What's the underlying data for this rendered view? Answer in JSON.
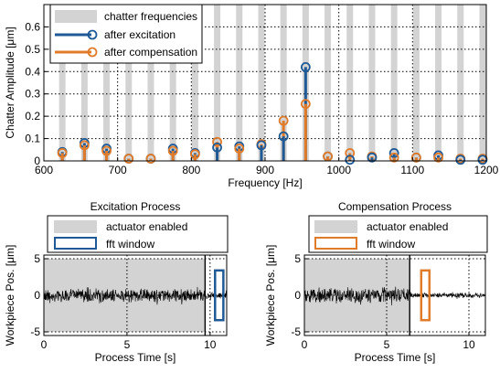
{
  "colors": {
    "chatter": "#d3d3d3",
    "excitation": "#1f5a96",
    "compensation": "#e07b2a",
    "noise": "#000000",
    "grid": "#000000"
  },
  "chart_data": [
    {
      "id": "spectrum",
      "type": "stem",
      "title": "",
      "xlabel": "Frequency [Hz]",
      "ylabel": "Chatter Amplitude [μm]",
      "xlim": [
        600,
        1200
      ],
      "ylim": [
        0,
        0.7
      ],
      "xticks": [
        600,
        700,
        800,
        900,
        1000,
        1100,
        1200
      ],
      "yticks": [
        0,
        0.1,
        0.2,
        0.3,
        0.4,
        0.5,
        0.6
      ],
      "xtick_labels": [
        "600",
        "700",
        "800",
        "900",
        "1000",
        "1100",
        "1200"
      ],
      "ytick_labels": [
        "0",
        "0.1",
        "0.2",
        "0.3",
        "0.4",
        "0.5",
        "0.6"
      ],
      "grid": true,
      "grid_style": "dotted",
      "legend_position": "top-left",
      "legend": [
        "chatter frequencies",
        "after excitation",
        "after compensation"
      ],
      "chatter_frequencies": [
        625,
        655,
        685,
        715,
        745,
        775,
        805,
        835,
        865,
        895,
        925,
        955,
        985,
        1015,
        1045,
        1075,
        1105,
        1135,
        1165,
        1195
      ],
      "series": [
        {
          "name": "after excitation",
          "x": [
            625,
            655,
            685,
            715,
            745,
            775,
            805,
            835,
            865,
            895,
            925,
            955,
            985,
            1015,
            1045,
            1075,
            1105,
            1135,
            1165,
            1195
          ],
          "values": [
            0.04,
            0.08,
            0.055,
            0.01,
            0.01,
            0.055,
            0.035,
            0.06,
            0.065,
            0.07,
            0.11,
            0.42,
            0.02,
            0.005,
            0.015,
            0.035,
            0.015,
            0.025,
            0.005,
            0.005
          ]
        },
        {
          "name": "after compensation",
          "x": [
            625,
            655,
            685,
            715,
            745,
            775,
            805,
            835,
            865,
            895,
            925,
            955,
            985,
            1015,
            1045,
            1075,
            1105,
            1135,
            1165,
            1195
          ],
          "values": [
            0.035,
            0.07,
            0.045,
            0.01,
            0.01,
            0.045,
            0.03,
            0.085,
            0.055,
            0.075,
            0.18,
            0.255,
            0.02,
            0.035,
            0.02,
            0.015,
            0.015,
            0.015,
            0.01,
            0.01
          ]
        }
      ]
    },
    {
      "id": "excitation",
      "type": "time-series",
      "title": "Excitation Process",
      "xlabel": "Process Time [s]",
      "ylabel": "Workpiece Pos. [μm]",
      "xlim": [
        0,
        11
      ],
      "ylim": [
        -5.5,
        5.5
      ],
      "xticks": [
        0,
        5,
        10
      ],
      "yticks": [
        -5,
        0,
        5
      ],
      "xtick_labels": [
        "0",
        "5",
        "10"
      ],
      "ytick_labels": [
        "-5",
        "0",
        "5"
      ],
      "grid": true,
      "legend_position": "top",
      "legend": [
        "actuator enabled",
        "fft window"
      ],
      "actuator_enabled": [
        0,
        9.7
      ],
      "fft_window": [
        10.3,
        10.8
      ],
      "fft_window_ylim": [
        -3.4,
        3.4
      ],
      "marker_line": 9.7,
      "signal": {
        "segments": [
          {
            "t": [
              0,
              9.7
            ],
            "amplitude": 1.0
          },
          {
            "t": [
              9.7,
              11
            ],
            "amplitude": 0.5
          }
        ]
      }
    },
    {
      "id": "compensation",
      "type": "time-series",
      "title": "Compensation Process",
      "xlabel": "Process Time [s]",
      "ylabel": "Workpiece Pos. [μm]",
      "xlim": [
        0,
        11
      ],
      "ylim": [
        -5.5,
        5.5
      ],
      "xticks": [
        0,
        5,
        10
      ],
      "yticks": [
        -5,
        0,
        5
      ],
      "xtick_labels": [
        "0",
        "5",
        "10"
      ],
      "ytick_labels": [
        "-5",
        "0",
        "5"
      ],
      "grid": true,
      "legend_position": "top",
      "legend": [
        "actuator enabled",
        "fft window"
      ],
      "actuator_enabled": [
        0,
        6.4
      ],
      "fft_window": [
        7.1,
        7.6
      ],
      "fft_window_ylim": [
        -3.4,
        3.4
      ],
      "marker_line": 6.4,
      "signal": {
        "segments": [
          {
            "t": [
              0,
              6.4
            ],
            "amplitude": 1.2
          },
          {
            "t": [
              6.4,
              11
            ],
            "amplitude": 0.4
          }
        ]
      }
    }
  ]
}
